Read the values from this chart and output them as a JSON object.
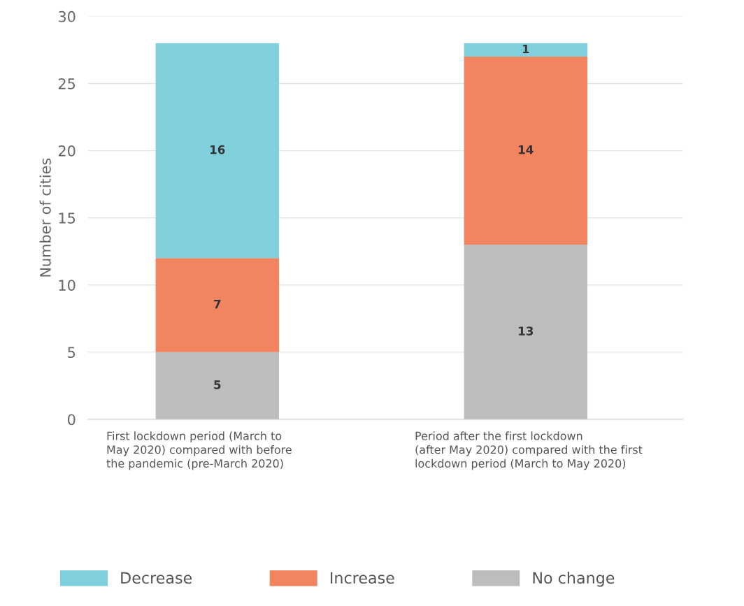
{
  "chart_data": {
    "type": "bar",
    "stacked": true,
    "ylabel": "Number of cities",
    "categories": [
      "First lockdown period (March to\nMay 2020) compared with before\nthe pandemic (pre-March 2020)",
      "Period after the first lockdown\n(after May 2020) compared with the first\nlockdown period (March to May 2020)"
    ],
    "series": [
      {
        "name": "No change",
        "color": "#bdbdbd",
        "values": [
          5,
          13
        ]
      },
      {
        "name": "Increase",
        "color": "#f2845f",
        "values": [
          7,
          14
        ]
      },
      {
        "name": "Decrease",
        "color": "#80cfdd",
        "values": [
          16,
          1
        ]
      }
    ],
    "ylim": [
      0,
      30
    ],
    "yticks": [
      0,
      5,
      10,
      15,
      20,
      25,
      30
    ],
    "grid": "y",
    "legend": "bottom",
    "data_labels": true
  }
}
